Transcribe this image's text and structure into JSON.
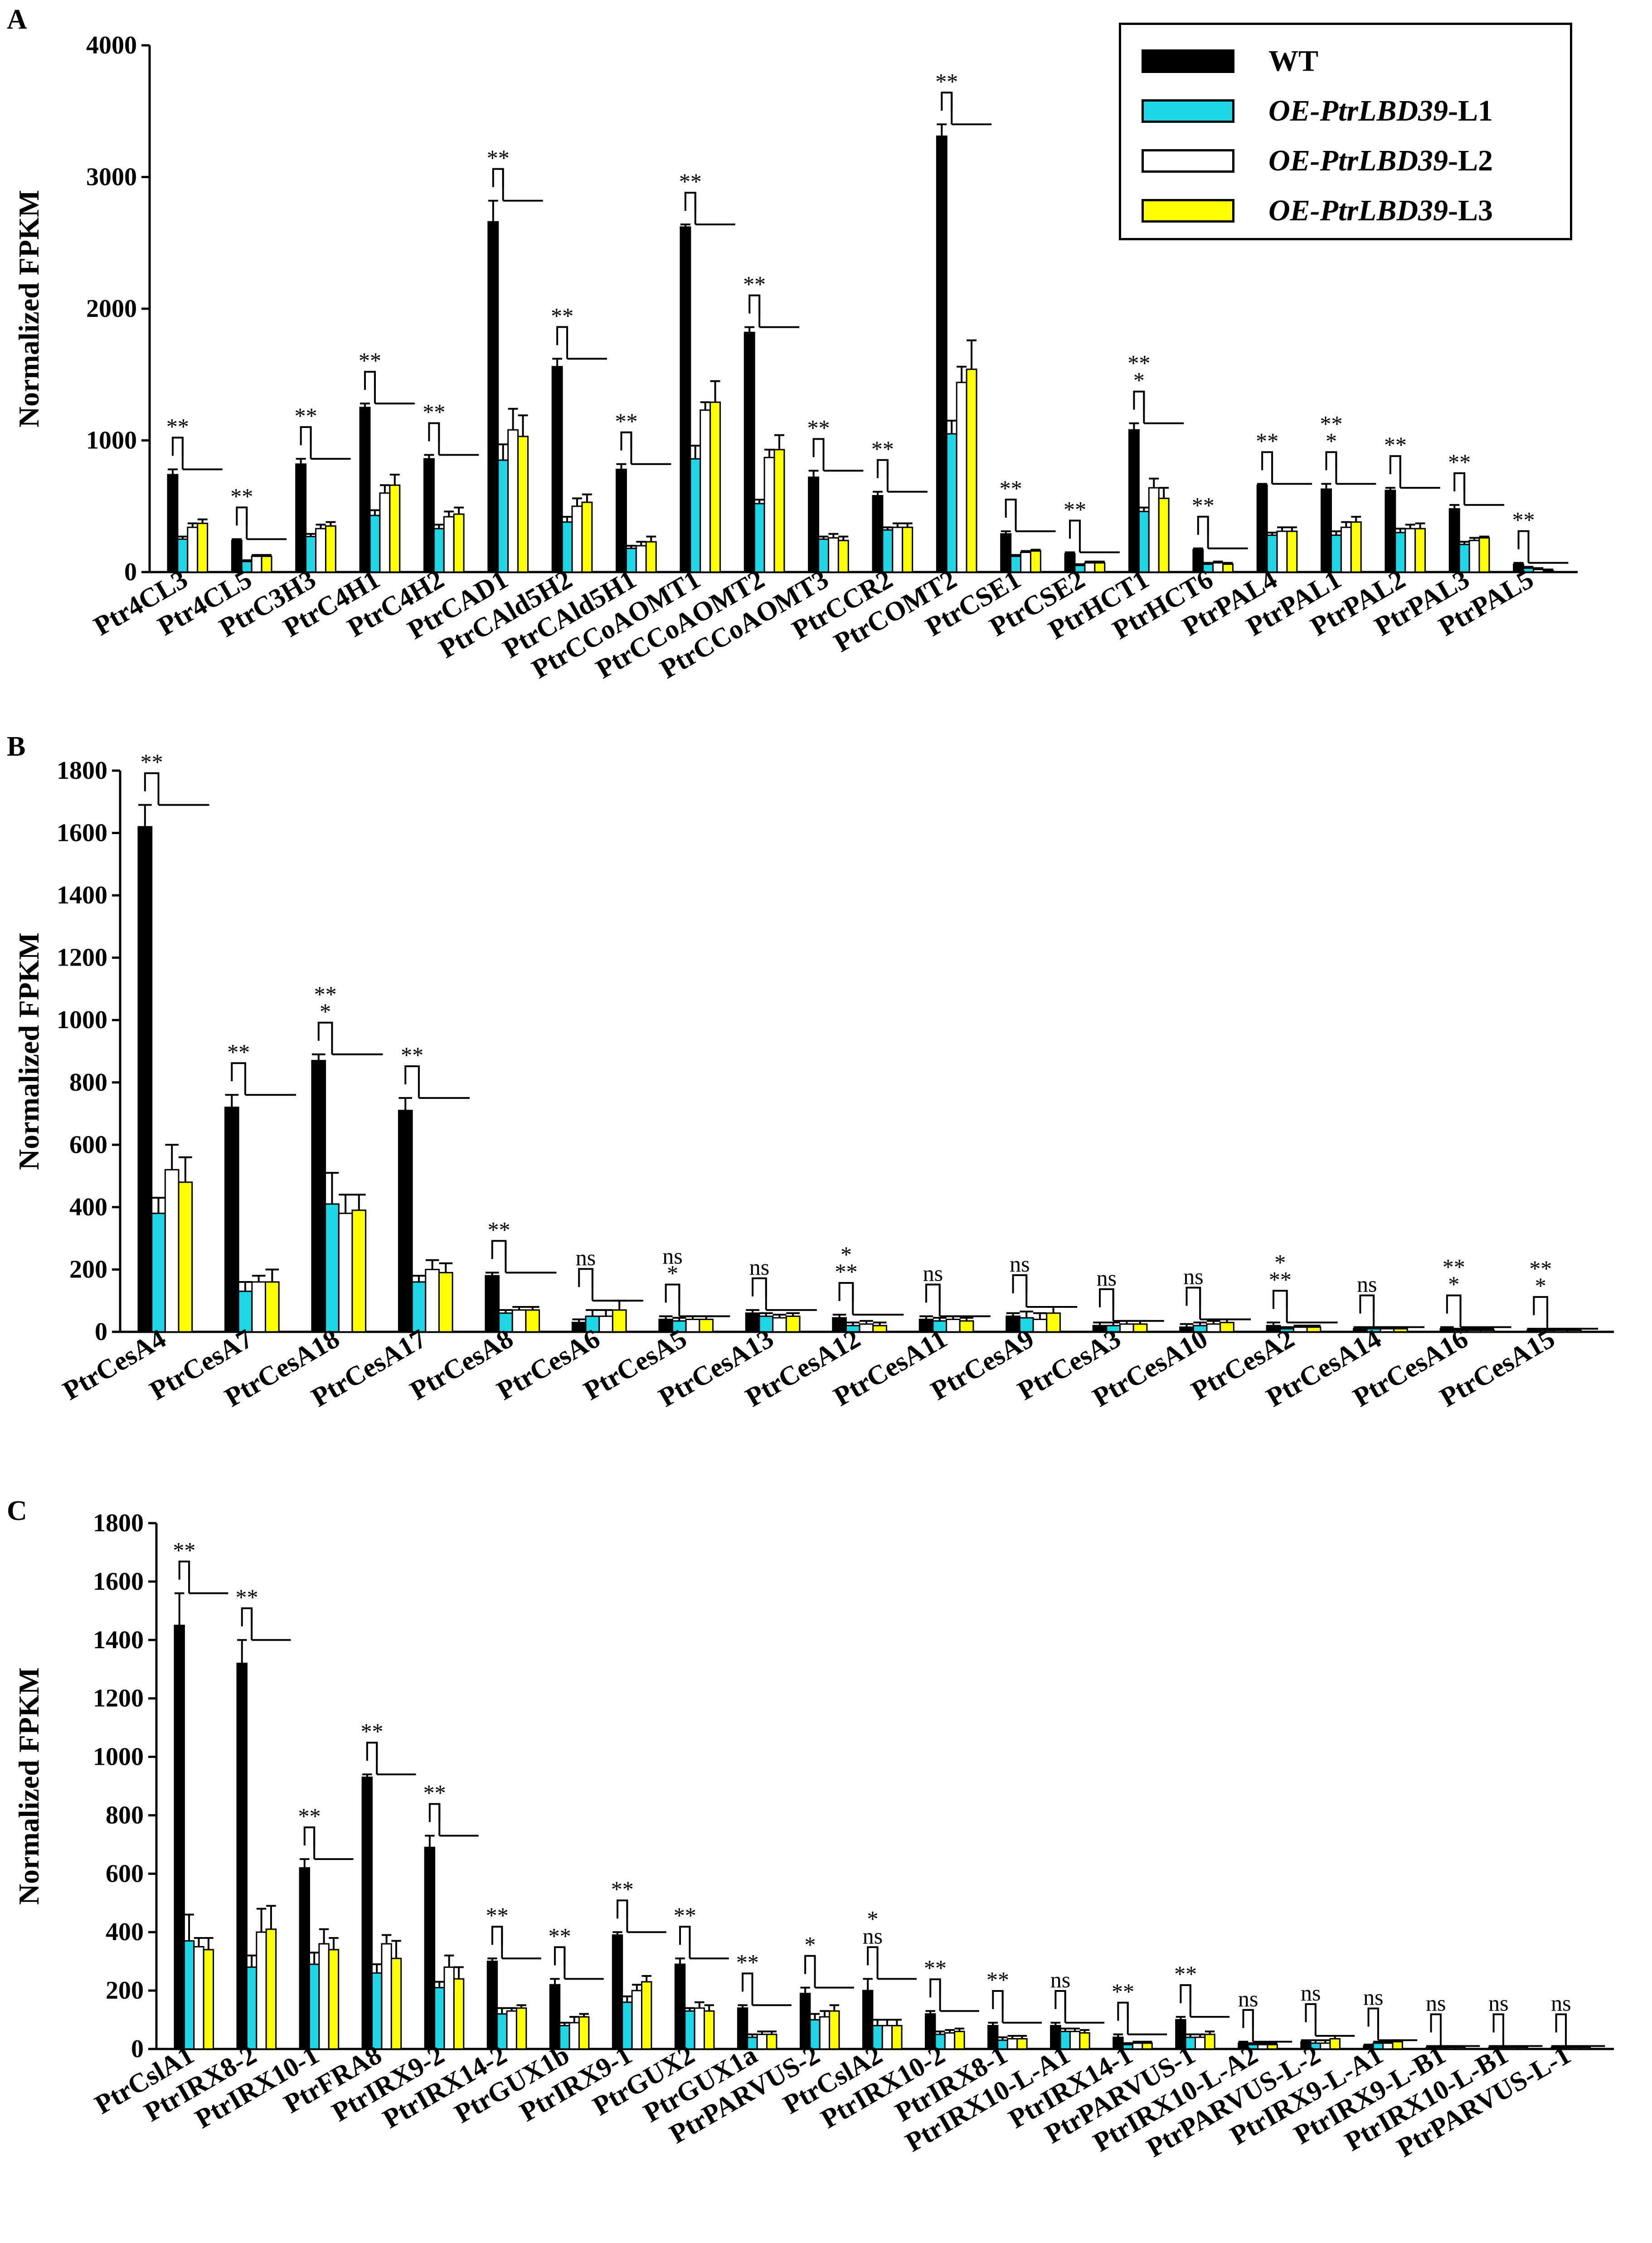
{
  "colors": {
    "WT": "#000000",
    "L1": "#1ed6e6",
    "L2": "#ffffff",
    "L3": "#ffff00"
  },
  "legend": [
    {
      "key": "WT",
      "name": "WT",
      "italic_part": "",
      "suffix": ""
    },
    {
      "key": "L1",
      "name": "OE-PtrLBD39-L1",
      "italic_part": "OE-PtrLBD39",
      "suffix": "-L1"
    },
    {
      "key": "L2",
      "name": "OE-PtrLBD39-L2",
      "italic_part": "OE-PtrLBD39",
      "suffix": "-L2"
    },
    {
      "key": "L3",
      "name": "OE-PtrLBD39-L3",
      "italic_part": "OE-PtrLBD39",
      "suffix": "-L3"
    }
  ],
  "chart_data": [
    {
      "panel": "A",
      "type": "bar",
      "ylabel": "Normalized FPKM",
      "ylim": [
        0,
        4000
      ],
      "yticks": [
        0,
        1000,
        2000,
        3000,
        4000
      ],
      "series_names": [
        "WT",
        "OE-PtrLBD39-L1",
        "OE-PtrLBD39-L2",
        "OE-PtrLBD39-L3"
      ],
      "categories": [
        "Ptr4CL3",
        "Ptr4CL5",
        "PtrC3H3",
        "PtrC4H1",
        "PtrC4H2",
        "PtrCAD1",
        "PtrCAld5H2",
        "PtrCAld5H1",
        "PtrCCoAOMT1",
        "PtrCCoAOMT2",
        "PtrCCoAOMT3",
        "PtrCCR2",
        "PtrCOMT2",
        "PtrCSE1",
        "PtrCSE2",
        "PtrHCT1",
        "PtrHCT6",
        "PtrPAL4",
        "PtrPAL1",
        "PtrPAL2",
        "PtrPAL3",
        "PtrPAL5"
      ],
      "values": [
        [
          740,
          250,
          340,
          370
        ],
        [
          240,
          80,
          120,
          120
        ],
        [
          820,
          270,
          330,
          350
        ],
        [
          1250,
          430,
          600,
          660
        ],
        [
          860,
          330,
          420,
          440
        ],
        [
          2660,
          850,
          1080,
          1030
        ],
        [
          1560,
          380,
          500,
          530
        ],
        [
          780,
          180,
          200,
          230
        ],
        [
          2620,
          860,
          1230,
          1290
        ],
        [
          1820,
          520,
          870,
          930
        ],
        [
          720,
          250,
          260,
          240
        ],
        [
          580,
          320,
          340,
          340
        ],
        [
          3310,
          1050,
          1440,
          1540
        ],
        [
          290,
          120,
          150,
          160
        ],
        [
          140,
          50,
          70,
          70
        ],
        [
          1080,
          460,
          640,
          560
        ],
        [
          170,
          60,
          70,
          60
        ],
        [
          660,
          280,
          310,
          310
        ],
        [
          630,
          280,
          340,
          380
        ],
        [
          620,
          300,
          330,
          330
        ],
        [
          480,
          210,
          240,
          260
        ],
        [
          60,
          30,
          20,
          10
        ]
      ],
      "errors": [
        [
          40,
          20,
          30,
          30
        ],
        [
          10,
          10,
          10,
          10
        ],
        [
          40,
          20,
          30,
          30
        ],
        [
          30,
          40,
          60,
          80
        ],
        [
          30,
          30,
          40,
          50
        ],
        [
          160,
          120,
          160,
          160
        ],
        [
          60,
          40,
          60,
          60
        ],
        [
          40,
          20,
          30,
          40
        ],
        [
          20,
          100,
          60,
          160
        ],
        [
          40,
          30,
          60,
          110
        ],
        [
          50,
          20,
          30,
          30
        ],
        [
          30,
          20,
          30,
          30
        ],
        [
          90,
          100,
          120,
          220
        ],
        [
          20,
          10,
          10,
          10
        ],
        [
          10,
          10,
          10,
          10
        ],
        [
          50,
          30,
          70,
          80
        ],
        [
          10,
          10,
          10,
          10
        ],
        [
          10,
          20,
          30,
          30
        ],
        [
          40,
          30,
          40,
          40
        ],
        [
          20,
          30,
          30,
          40
        ],
        [
          30,
          20,
          20,
          10
        ],
        [
          10,
          10,
          10,
          10
        ]
      ],
      "significance": [
        "**",
        "**",
        "**",
        "**",
        "**",
        "**",
        "**",
        "**",
        "**",
        "**",
        "**",
        "**",
        "**",
        "**",
        "**",
        "*|**",
        "**",
        "**",
        "*|**",
        "**",
        "**",
        "**"
      ]
    },
    {
      "panel": "B",
      "type": "bar",
      "ylabel": "Normalized FPKM",
      "ylim": [
        0,
        1800
      ],
      "yticks": [
        0,
        200,
        400,
        600,
        800,
        1000,
        1200,
        1400,
        1600,
        1800
      ],
      "series_names": [
        "WT",
        "OE-PtrLBD39-L1",
        "OE-PtrLBD39-L2",
        "OE-PtrLBD39-L3"
      ],
      "categories": [
        "PtrCesA4",
        "PtrCesA7",
        "PtrCesA18",
        "PtrCesA17",
        "PtrCesA8",
        "PtrCesA6",
        "PtrCesA5",
        "PtrCesA13",
        "PtrCesA12",
        "PtrCesA11",
        "PtrCesA9",
        "PtrCesA3",
        "PtrCesA10",
        "PtrCesA2",
        "PtrCesA14",
        "PtrCesA16",
        "PtrCesA15"
      ],
      "values": [
        [
          1620,
          380,
          520,
          480
        ],
        [
          720,
          130,
          160,
          160
        ],
        [
          870,
          410,
          380,
          390
        ],
        [
          710,
          160,
          200,
          190
        ],
        [
          180,
          60,
          70,
          70
        ],
        [
          30,
          50,
          50,
          70
        ],
        [
          40,
          35,
          40,
          40
        ],
        [
          60,
          50,
          45,
          50
        ],
        [
          45,
          20,
          25,
          20
        ],
        [
          40,
          35,
          40,
          35
        ],
        [
          50,
          45,
          40,
          60
        ],
        [
          20,
          20,
          25,
          25
        ],
        [
          15,
          20,
          25,
          30
        ],
        [
          20,
          10,
          15,
          15
        ],
        [
          10,
          10,
          10,
          10
        ],
        [
          10,
          5,
          5,
          5
        ],
        [
          5,
          5,
          5,
          5
        ]
      ],
      "errors": [
        [
          70,
          50,
          80,
          80
        ],
        [
          40,
          30,
          20,
          40
        ],
        [
          20,
          100,
          60,
          50
        ],
        [
          40,
          20,
          30,
          30
        ],
        [
          10,
          10,
          10,
          10
        ],
        [
          10,
          20,
          20,
          30
        ],
        [
          10,
          10,
          10,
          10
        ],
        [
          10,
          10,
          10,
          10
        ],
        [
          10,
          10,
          10,
          10
        ],
        [
          10,
          10,
          10,
          10
        ],
        [
          10,
          20,
          20,
          20
        ],
        [
          10,
          10,
          10,
          10
        ],
        [
          10,
          10,
          10,
          10
        ],
        [
          10,
          5,
          5,
          5
        ],
        [
          5,
          5,
          5,
          5
        ],
        [
          5,
          5,
          5,
          5
        ],
        [
          5,
          5,
          5,
          5
        ]
      ],
      "significance": [
        "**",
        "**",
        "*|**",
        "**",
        "**",
        "ns",
        "*|ns",
        "ns",
        "**|*",
        "ns",
        "ns",
        "ns",
        "ns",
        "**|*",
        "ns",
        "*|**",
        "*|**"
      ]
    },
    {
      "panel": "C",
      "type": "bar",
      "ylabel": "Normalized FPKM",
      "ylim": [
        0,
        1800
      ],
      "yticks": [
        0,
        200,
        400,
        600,
        800,
        1000,
        1200,
        1400,
        1600,
        1800
      ],
      "series_names": [
        "WT",
        "OE-PtrLBD39-L1",
        "OE-PtrLBD39-L2",
        "OE-PtrLBD39-L3"
      ],
      "categories": [
        "PtrCslA1",
        "PtrIRX8-2",
        "PtrIRX10-1",
        "PtrFRA8",
        "PtrIRX9-2",
        "PtrIRX14-2",
        "PtrGUX1b",
        "PtrIRX9-1",
        "PtrGUX2",
        "PtrGUX1a",
        "PtrPARVUS-2",
        "PtrCslA2",
        "PtrIRX10-2",
        "PtrIRX8-1",
        "PtrIRX10-L-A1",
        "PtrIRX14-1",
        "PtrPARVUS-1",
        "PtrIRX10-L-A2",
        "PtrPARVUS-L-2",
        "PtrIRX9-L-A1",
        "PtrIRX9-L-B1",
        "PtrIRX10-L-B1",
        "PtrPARVUS-L-1"
      ],
      "values": [
        [
          1450,
          370,
          350,
          340
        ],
        [
          1320,
          280,
          400,
          410
        ],
        [
          620,
          290,
          360,
          340
        ],
        [
          930,
          260,
          360,
          310
        ],
        [
          690,
          210,
          280,
          240
        ],
        [
          300,
          120,
          130,
          140
        ],
        [
          220,
          80,
          90,
          110
        ],
        [
          390,
          160,
          200,
          230
        ],
        [
          290,
          130,
          140,
          130
        ],
        [
          140,
          40,
          50,
          50
        ],
        [
          190,
          100,
          110,
          130
        ],
        [
          200,
          80,
          80,
          80
        ],
        [
          120,
          50,
          55,
          60
        ],
        [
          80,
          30,
          35,
          35
        ],
        [
          80,
          60,
          60,
          55
        ],
        [
          40,
          15,
          20,
          20
        ],
        [
          100,
          40,
          40,
          50
        ],
        [
          20,
          15,
          15,
          15
        ],
        [
          25,
          20,
          20,
          35
        ],
        [
          10,
          20,
          20,
          25
        ],
        [
          5,
          5,
          5,
          5
        ],
        [
          5,
          5,
          5,
          5
        ],
        [
          5,
          5,
          5,
          5
        ]
      ],
      "errors": [
        [
          110,
          90,
          30,
          40
        ],
        [
          80,
          40,
          80,
          80
        ],
        [
          30,
          40,
          50,
          40
        ],
        [
          10,
          30,
          30,
          60
        ],
        [
          40,
          20,
          40,
          40
        ],
        [
          10,
          20,
          10,
          10
        ],
        [
          20,
          10,
          20,
          10
        ],
        [
          10,
          20,
          20,
          20
        ],
        [
          20,
          10,
          20,
          20
        ],
        [
          10,
          10,
          10,
          10
        ],
        [
          20,
          20,
          20,
          20
        ],
        [
          40,
          20,
          20,
          20
        ],
        [
          10,
          10,
          10,
          10
        ],
        [
          10,
          10,
          10,
          10
        ],
        [
          10,
          10,
          10,
          10
        ],
        [
          10,
          5,
          5,
          5
        ],
        [
          10,
          10,
          10,
          10
        ],
        [
          5,
          5,
          5,
          5
        ],
        [
          5,
          10,
          10,
          10
        ],
        [
          5,
          5,
          5,
          5
        ],
        [
          5,
          5,
          5,
          5
        ],
        [
          5,
          5,
          5,
          5
        ],
        [
          5,
          5,
          5,
          5
        ]
      ],
      "significance": [
        "**",
        "**",
        "**",
        "**",
        "**",
        "**",
        "**",
        "**",
        "**",
        "**",
        "*",
        "ns|*",
        "**",
        "**",
        "ns",
        "**",
        "**",
        "ns",
        "ns",
        "ns",
        "ns",
        "ns",
        "ns"
      ]
    }
  ]
}
